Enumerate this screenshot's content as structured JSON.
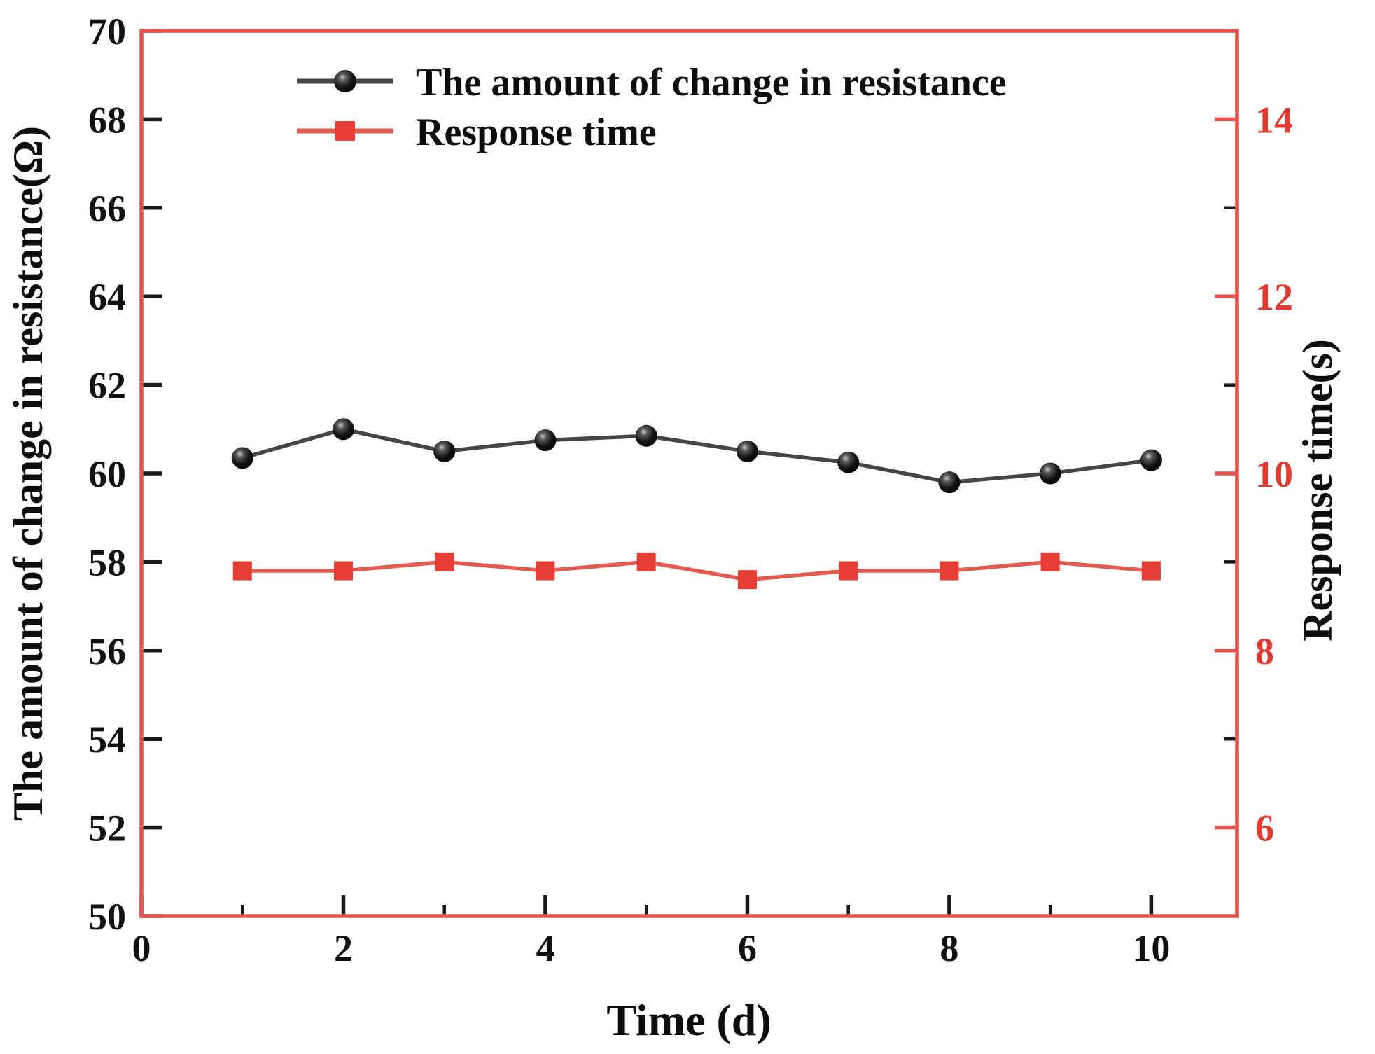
{
  "style": {
    "background": "#ffffff",
    "frame_color": "#e4534e",
    "accent_red_marker": "#e63d35",
    "accent_red_line": "#e35a50",
    "black_line": "#454545",
    "black_marker": "#0a0a0a",
    "tick_black": "#1a1a1a",
    "right_label_red": "#e03a31"
  },
  "chart_data": {
    "type": "line",
    "title": "",
    "xlabel": "Time (d)",
    "ylabel_left": "The amount of change in resistance(Ω)",
    "ylabel_right": "Response time(s)",
    "grid": false,
    "legend_position": "upper-center-inside",
    "x": [
      1,
      2,
      3,
      4,
      5,
      6,
      7,
      8,
      9,
      10
    ],
    "series": [
      {
        "name": "The amount of change in resistance",
        "axis": "left",
        "marker": "circle",
        "line_color": "#454545",
        "marker_color": "#0a0a0a",
        "values": [
          60.35,
          61.0,
          60.5,
          60.75,
          60.85,
          60.5,
          60.25,
          59.8,
          60.0,
          60.3
        ]
      },
      {
        "name": "Response time",
        "axis": "right",
        "marker": "square",
        "line_color": "#e35a50",
        "marker_color": "#e63d35",
        "values": [
          8.9,
          8.9,
          9.0,
          8.9,
          9.0,
          8.8,
          8.9,
          8.9,
          9.0,
          8.9
        ]
      }
    ],
    "x_axis": {
      "min": 0,
      "max": 10.85,
      "major_ticks": [
        0,
        2,
        4,
        6,
        8,
        10
      ],
      "labels": [
        "0",
        "2",
        "4",
        "6",
        "8",
        "10"
      ],
      "minor_ticks": [
        1,
        3,
        5,
        7,
        9
      ]
    },
    "left_axis": {
      "min": 50,
      "max": 70,
      "major_ticks": [
        50,
        52,
        54,
        56,
        58,
        60,
        62,
        64,
        66,
        68,
        70
      ],
      "labels": [
        "50",
        "52",
        "54",
        "56",
        "58",
        "60",
        "62",
        "64",
        "66",
        "68",
        "70"
      ],
      "minor_ticks": []
    },
    "right_axis": {
      "min": 5,
      "max": 15,
      "major_ticks": [
        6,
        8,
        10,
        12,
        14
      ],
      "labels": [
        "6",
        "8",
        "10",
        "12",
        "14"
      ],
      "minor_ticks": [
        7,
        9,
        11,
        13
      ]
    }
  }
}
